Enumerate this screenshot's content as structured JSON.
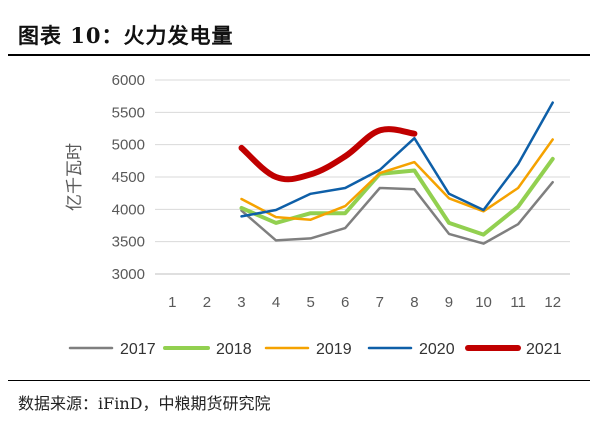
{
  "header": {
    "title": "图表 10：火力发电量"
  },
  "footer": {
    "source": "数据来源：iFinD，中粮期货研究院"
  },
  "chart_data": {
    "type": "line",
    "title": "图表 10：火力发电量",
    "xlabel": "",
    "ylabel": "亿千瓦时",
    "categories": [
      "1",
      "2",
      "3",
      "4",
      "5",
      "6",
      "7",
      "8",
      "9",
      "10",
      "11",
      "12"
    ],
    "ylim": [
      3000,
      6000
    ],
    "yticks": [
      3000,
      3500,
      4000,
      4500,
      5000,
      5500,
      6000
    ],
    "grid": "horizontal",
    "legend_position": "bottom",
    "series": [
      {
        "name": "2017",
        "color": "#7f7f7f",
        "width": 2.5,
        "values": [
          null,
          null,
          3980,
          3520,
          3550,
          3710,
          4330,
          4310,
          3620,
          3470,
          3770,
          4420
        ]
      },
      {
        "name": "2018",
        "color": "#92d050",
        "width": 4,
        "values": [
          null,
          null,
          4020,
          3790,
          3940,
          3940,
          4550,
          4600,
          3790,
          3610,
          4040,
          4780
        ]
      },
      {
        "name": "2019",
        "color": "#f5a200",
        "width": 2.5,
        "values": [
          null,
          null,
          4160,
          3880,
          3840,
          4050,
          4560,
          4730,
          4170,
          3970,
          4330,
          5080
        ]
      },
      {
        "name": "2020",
        "color": "#0e5fa8",
        "width": 2.5,
        "values": [
          null,
          null,
          3890,
          3990,
          4240,
          4330,
          4610,
          5100,
          4240,
          3990,
          4700,
          5650
        ]
      },
      {
        "name": "2021",
        "color": "#c00000",
        "width": 6,
        "values": [
          null,
          null,
          4950,
          4500,
          4540,
          4820,
          5220,
          5170,
          null,
          null,
          null,
          null
        ]
      }
    ]
  }
}
